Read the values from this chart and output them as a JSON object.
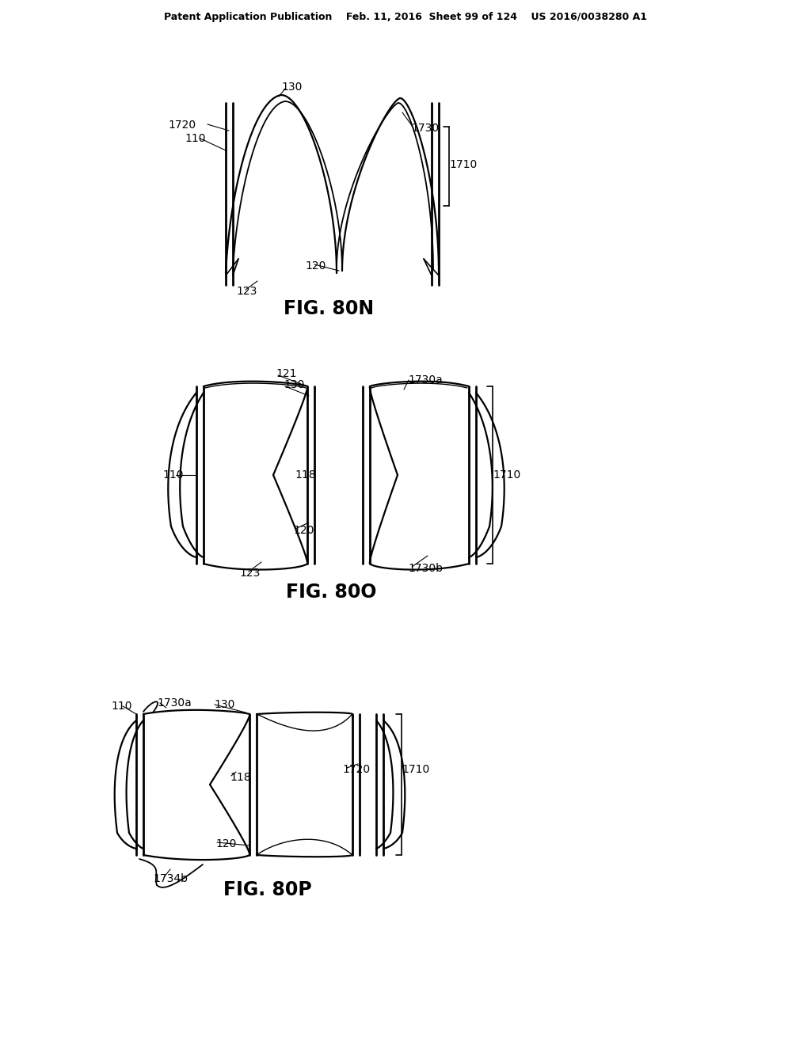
{
  "bg_color": "#ffffff",
  "line_color": "#000000",
  "header_text": "Patent Application Publication    Feb. 11, 2016  Sheet 99 of 124    US 2016/0038280 A1",
  "fig80N_label": "FIG. 80N",
  "fig80O_label": "FIG. 80O",
  "fig80P_label": "FIG. 80P",
  "label_fontsize": 10,
  "caption_fontsize": 17,
  "header_fontsize": 9
}
